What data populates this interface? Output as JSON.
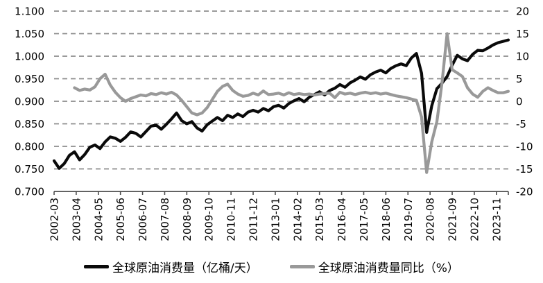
{
  "chart_data": {
    "type": "line",
    "title": "",
    "grid": "horizontal-dashed",
    "legend_position": "bottom",
    "background_color": "#ffffff",
    "gridline_color": "#8c8c8c",
    "axis_color": "#4d4d4d",
    "left_axis": {
      "min": 0.7,
      "max": 1.1,
      "step": 0.05,
      "tick_labels": [
        "1.100",
        "1.050",
        "1.000",
        "0.950",
        "0.900",
        "0.850",
        "0.800",
        "0.750",
        "0.700"
      ]
    },
    "right_axis": {
      "min": -20,
      "max": 20,
      "step": 5,
      "tick_labels": [
        "20",
        "15",
        "10",
        "5",
        "0",
        "-5",
        "-10",
        "-15",
        "-20"
      ]
    },
    "x_tick_labels": [
      "2002-03",
      "2003-04",
      "2004-05",
      "2005-06",
      "2006-07",
      "2007-08",
      "2008-09",
      "2009-10",
      "2010-11",
      "2011-12",
      "2013-01",
      "2014-02",
      "2015-03",
      "2016-04",
      "2017-05",
      "2018-06",
      "2019-07",
      "2020-08",
      "2021-09",
      "2022-10",
      "2023-11"
    ],
    "categories": [
      "2002-03",
      "2002-06",
      "2002-09",
      "2002-12",
      "2003-03",
      "2003-06",
      "2003-09",
      "2003-12",
      "2004-03",
      "2004-06",
      "2004-09",
      "2004-12",
      "2005-03",
      "2005-06",
      "2005-09",
      "2005-12",
      "2006-03",
      "2006-06",
      "2006-09",
      "2006-12",
      "2007-03",
      "2007-06",
      "2007-09",
      "2007-12",
      "2008-03",
      "2008-06",
      "2008-09",
      "2008-12",
      "2009-03",
      "2009-06",
      "2009-09",
      "2009-12",
      "2010-03",
      "2010-06",
      "2010-09",
      "2010-12",
      "2011-03",
      "2011-06",
      "2011-09",
      "2011-12",
      "2012-03",
      "2012-06",
      "2012-09",
      "2012-12",
      "2013-03",
      "2013-06",
      "2013-09",
      "2013-12",
      "2014-03",
      "2014-06",
      "2014-09",
      "2014-12",
      "2015-03",
      "2015-06",
      "2015-09",
      "2015-12",
      "2016-03",
      "2016-06",
      "2016-09",
      "2016-12",
      "2017-03",
      "2017-06",
      "2017-09",
      "2017-12",
      "2018-03",
      "2018-06",
      "2018-09",
      "2018-12",
      "2019-03",
      "2019-06",
      "2019-09",
      "2019-12",
      "2020-03",
      "2020-06",
      "2020-09",
      "2020-12",
      "2021-03",
      "2021-06",
      "2021-09",
      "2021-12",
      "2022-03",
      "2022-06",
      "2022-09",
      "2022-12",
      "2023-03",
      "2023-06",
      "2023-09",
      "2023-12",
      "2024-03",
      "2024-06"
    ],
    "series": [
      {
        "name": "全球原油消费量（亿桶/天）",
        "axis": "left",
        "color": "#0a0a0a",
        "values": [
          0.768,
          0.751,
          0.762,
          0.78,
          0.788,
          0.77,
          0.782,
          0.798,
          0.803,
          0.795,
          0.81,
          0.821,
          0.818,
          0.811,
          0.82,
          0.832,
          0.829,
          0.821,
          0.833,
          0.845,
          0.847,
          0.838,
          0.849,
          0.861,
          0.874,
          0.857,
          0.85,
          0.855,
          0.841,
          0.834,
          0.848,
          0.856,
          0.864,
          0.857,
          0.869,
          0.864,
          0.872,
          0.866,
          0.876,
          0.88,
          0.876,
          0.884,
          0.879,
          0.888,
          0.891,
          0.885,
          0.895,
          0.901,
          0.906,
          0.899,
          0.909,
          0.915,
          0.921,
          0.914,
          0.924,
          0.929,
          0.937,
          0.931,
          0.941,
          0.947,
          0.954,
          0.949,
          0.959,
          0.965,
          0.969,
          0.963,
          0.973,
          0.979,
          0.983,
          0.979,
          0.996,
          1.006,
          0.962,
          0.831,
          0.89,
          0.928,
          0.94,
          0.955,
          0.98,
          1.002,
          0.994,
          0.99,
          1.004,
          1.013,
          1.012,
          1.018,
          1.025,
          1.03,
          1.033,
          1.036
        ]
      },
      {
        "name": "全球原油消费量同比（%）",
        "axis": "right",
        "color": "#999999",
        "values": [
          null,
          null,
          null,
          null,
          3.0,
          2.4,
          2.7,
          2.5,
          3.2,
          5.0,
          6.0,
          3.6,
          2.0,
          0.8,
          0.0,
          0.6,
          1.0,
          1.4,
          1.2,
          1.7,
          1.5,
          1.9,
          1.6,
          2.0,
          1.4,
          0.2,
          -1.2,
          -2.6,
          -3.0,
          -2.6,
          -1.4,
          0.4,
          2.2,
          3.3,
          3.8,
          2.4,
          1.6,
          1.1,
          1.3,
          1.8,
          1.4,
          2.3,
          1.5,
          1.6,
          1.8,
          1.4,
          1.9,
          1.5,
          1.7,
          1.5,
          1.6,
          1.4,
          1.6,
          1.7,
          1.8,
          0.8,
          2.0,
          1.6,
          1.8,
          1.5,
          1.8,
          2.0,
          1.7,
          1.9,
          1.6,
          1.8,
          1.5,
          1.2,
          1.0,
          0.8,
          0.5,
          0.2,
          -3.5,
          -15.8,
          -9.0,
          -4.5,
          4.0,
          15.0,
          7.0,
          6.3,
          5.5,
          3.0,
          1.6,
          0.9,
          2.2,
          3.0,
          2.4,
          1.9,
          1.9,
          2.2
        ]
      }
    ]
  }
}
